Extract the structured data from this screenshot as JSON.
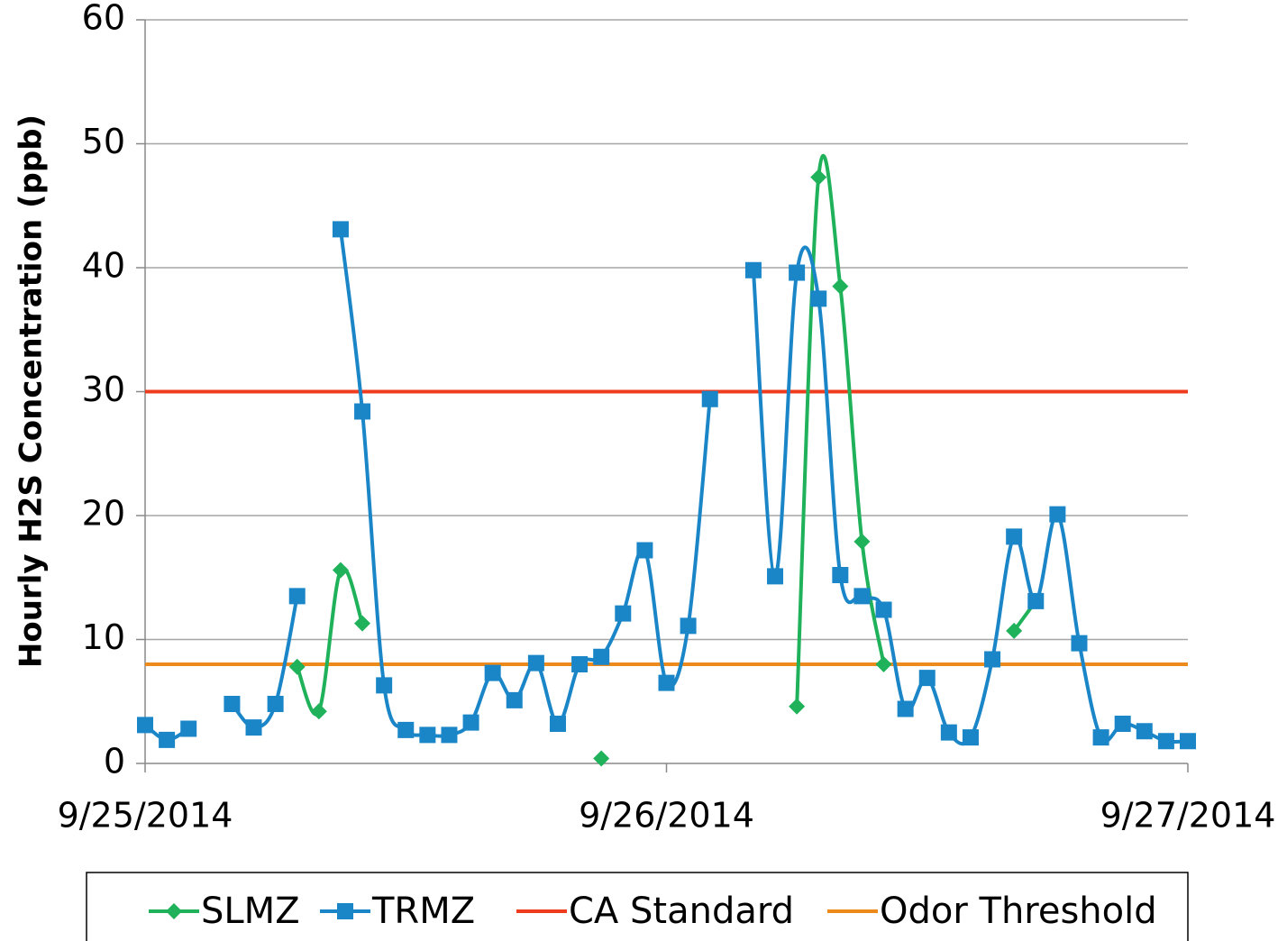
{
  "chart_data": {
    "type": "line",
    "y_label": "Hourly H2S Concentration (ppb)",
    "x": [
      0,
      1,
      2,
      3,
      4,
      5,
      6,
      7,
      8,
      9,
      10,
      11,
      12,
      13,
      14,
      15,
      16,
      17,
      18,
      19,
      20,
      21,
      22,
      23,
      24,
      25,
      26,
      27,
      28,
      29,
      30,
      31,
      32,
      33,
      34,
      35,
      36,
      37,
      38,
      39,
      40,
      41,
      42,
      43,
      44,
      45,
      46,
      47,
      48
    ],
    "xlim": [
      0,
      48
    ],
    "xticks": [
      {
        "value": 0,
        "label": "9/25/2014"
      },
      {
        "value": 24,
        "label": "9/26/2014"
      },
      {
        "value": 48,
        "label": "9/27/2014"
      }
    ],
    "ylim": [
      0,
      60
    ],
    "yticks": [
      0,
      10,
      20,
      30,
      40,
      50,
      60
    ],
    "grid": true,
    "smooth": true,
    "series": [
      {
        "name": "SLMZ",
        "color": "#1fb25a",
        "marker": "diamond",
        "values": [
          null,
          null,
          null,
          null,
          null,
          null,
          null,
          7.8,
          4.2,
          15.6,
          11.3,
          null,
          null,
          null,
          null,
          null,
          null,
          null,
          null,
          null,
          null,
          0.4,
          null,
          null,
          null,
          null,
          null,
          null,
          null,
          null,
          4.6,
          47.3,
          38.5,
          17.9,
          8.0,
          null,
          null,
          null,
          null,
          null,
          10.7,
          13.1,
          null,
          null,
          null,
          null,
          null,
          null,
          null
        ]
      },
      {
        "name": "TRMZ",
        "color": "#1a86c8",
        "marker": "square",
        "values": [
          3.1,
          1.9,
          2.8,
          null,
          4.8,
          2.9,
          4.8,
          13.5,
          null,
          43.1,
          28.4,
          6.3,
          2.7,
          2.3,
          2.3,
          3.3,
          7.3,
          5.1,
          8.1,
          3.2,
          8.0,
          8.6,
          12.1,
          17.2,
          6.5,
          11.1,
          29.4,
          null,
          39.8,
          15.1,
          39.6,
          37.5,
          15.2,
          13.5,
          12.4,
          4.4,
          6.9,
          2.5,
          2.1,
          8.4,
          18.3,
          13.1,
          20.1,
          9.7,
          2.1,
          3.2,
          2.6,
          1.8,
          1.8
        ]
      }
    ],
    "reference_lines": [
      {
        "name": "CA Standard",
        "color": "#f03c1e",
        "value": 30
      },
      {
        "name": "Odor Threshold",
        "color": "#ec8a1c",
        "value": 8
      }
    ]
  }
}
